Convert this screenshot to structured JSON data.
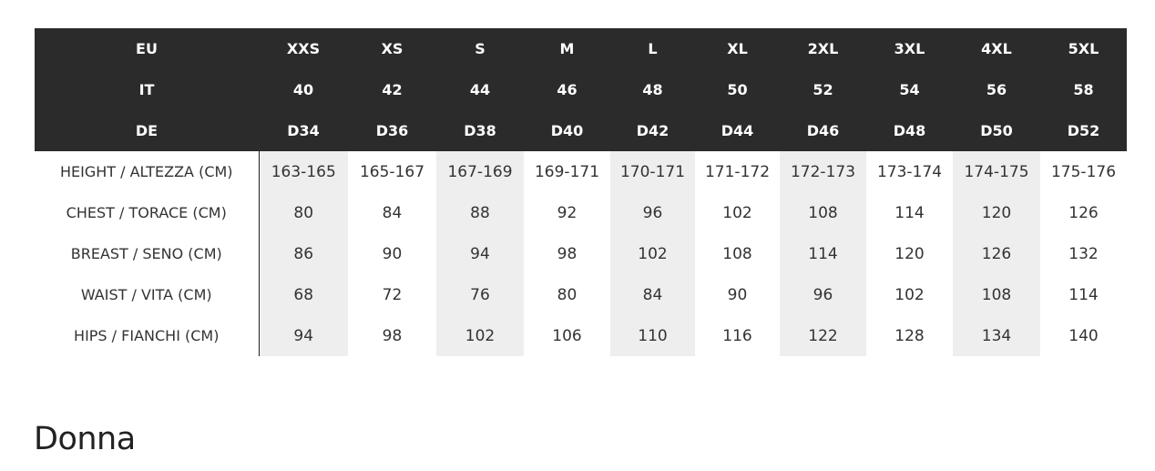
{
  "header_rows": [
    {
      "label": "EU",
      "values": [
        "XXS",
        "XS",
        "S",
        "M",
        "L",
        "XL",
        "2XL",
        "3XL",
        "4XL",
        "5XL"
      ]
    },
    {
      "label": "IT",
      "values": [
        "40",
        "42",
        "44",
        "46",
        "48",
        "50",
        "52",
        "54",
        "56",
        "58"
      ]
    },
    {
      "label": "DE",
      "values": [
        "D34",
        "D36",
        "D38",
        "D40",
        "D42",
        "D44",
        "D46",
        "D48",
        "D50",
        "D52"
      ]
    }
  ],
  "body_rows": [
    {
      "label": "HEIGHT / ALTEZZA (CM)",
      "values": [
        "163-165",
        "165-167",
        "167-169",
        "169-171",
        "170-171",
        "171-172",
        "172-173",
        "173-174",
        "174-175",
        "175-176"
      ]
    },
    {
      "label": "CHEST / TORACE (CM)",
      "values": [
        "80",
        "84",
        "88",
        "92",
        "96",
        "102",
        "108",
        "114",
        "120",
        "126"
      ]
    },
    {
      "label": "BREAST / SENO (CM)",
      "values": [
        "86",
        "90",
        "94",
        "98",
        "102",
        "108",
        "114",
        "120",
        "126",
        "132"
      ]
    },
    {
      "label": "WAIST / VITA (CM)",
      "values": [
        "68",
        "72",
        "76",
        "80",
        "84",
        "90",
        "96",
        "102",
        "108",
        "114"
      ]
    },
    {
      "label": "HIPS / FIANCHI (CM)",
      "values": [
        "94",
        "98",
        "102",
        "106",
        "110",
        "116",
        "122",
        "128",
        "134",
        "140"
      ]
    }
  ],
  "section_title": "Donna",
  "colors": {
    "header_bg": "#2b2b2b",
    "shade": "#eeeeee"
  }
}
